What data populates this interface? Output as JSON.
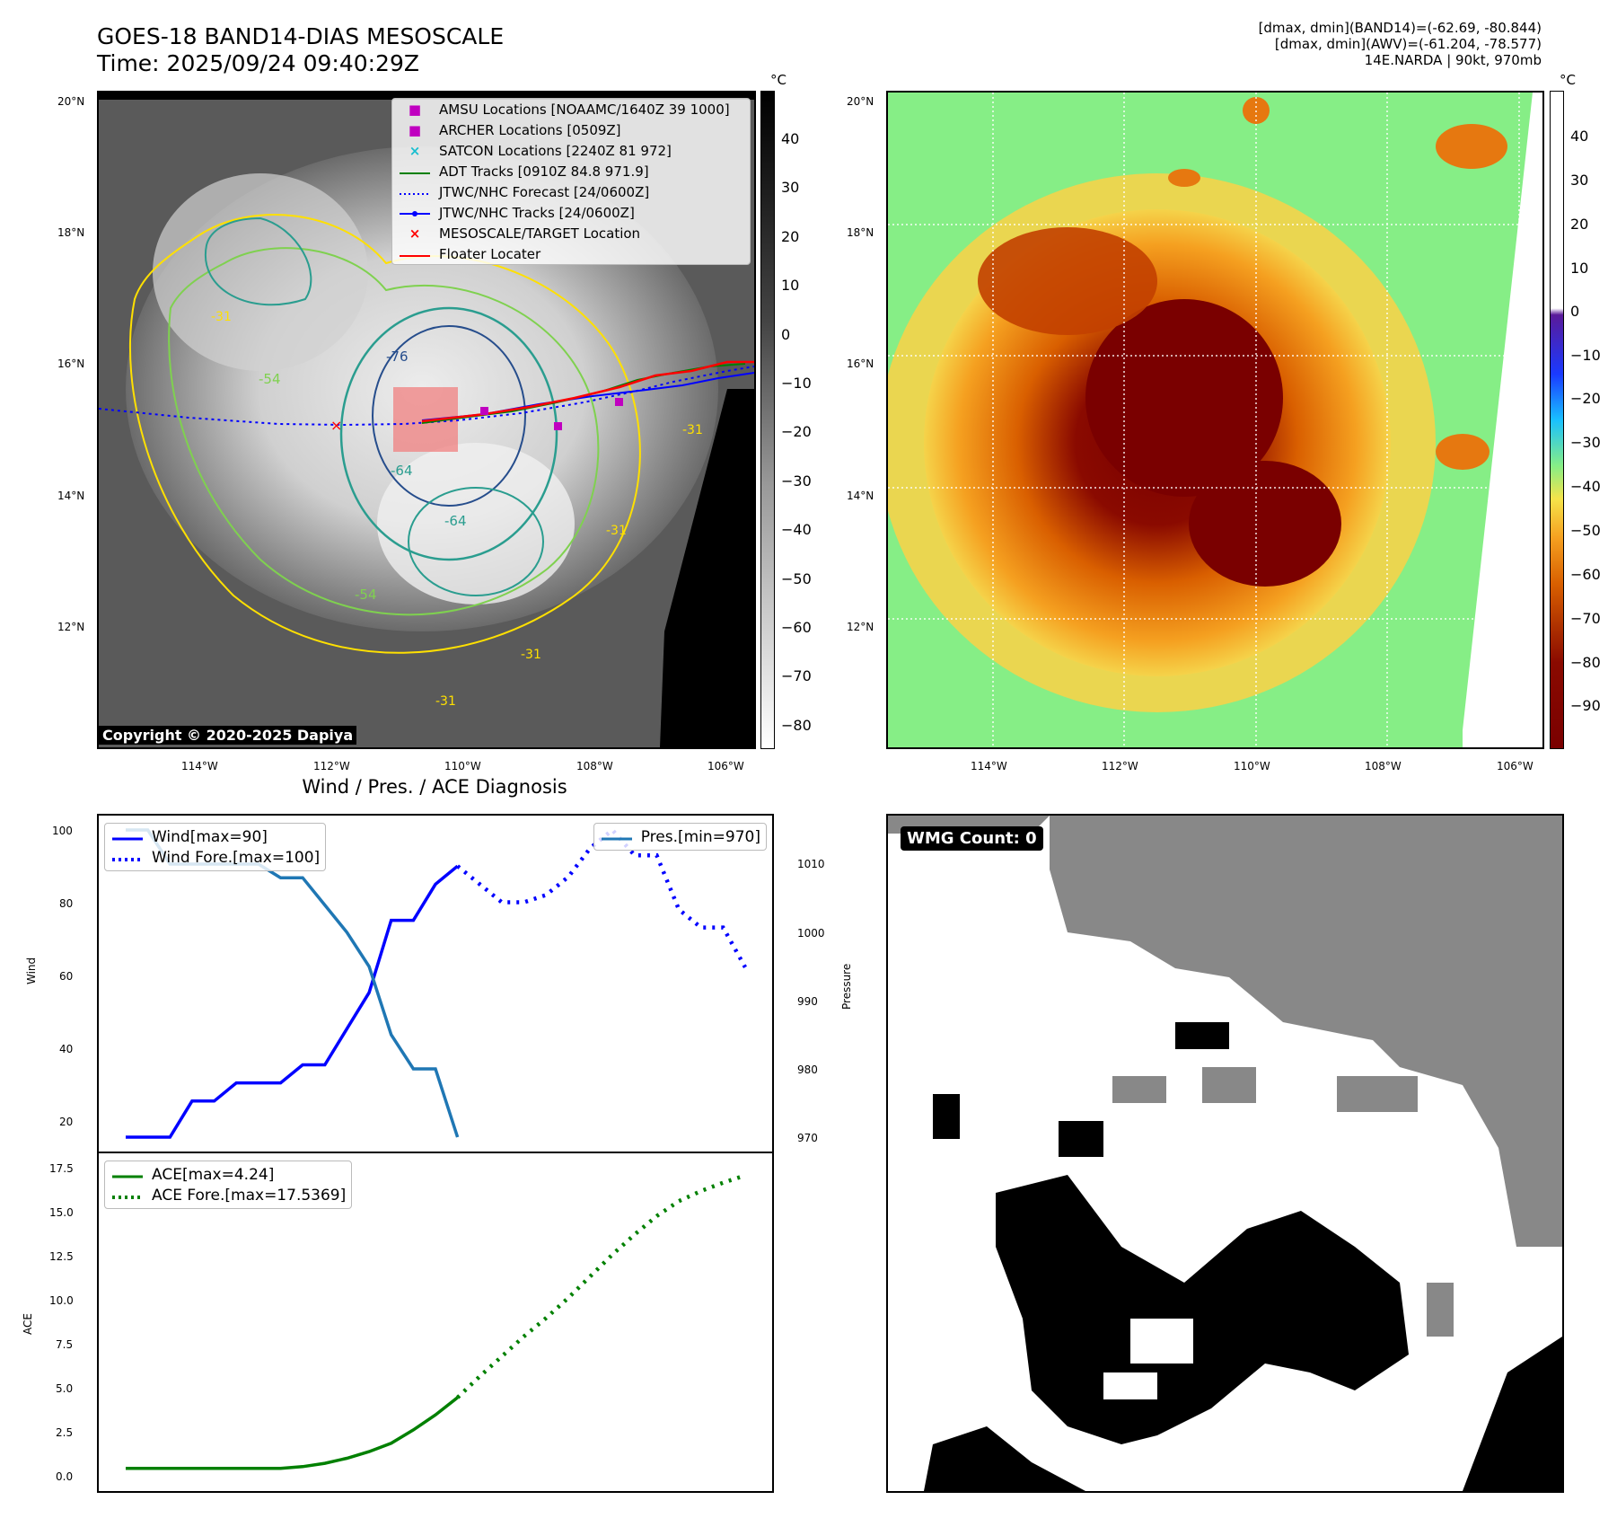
{
  "header": {
    "title_line1": "GOES-18 BAND14-DIAS MESOSCALE",
    "title_line2": "Time: 2025/09/24 09:40:29Z",
    "info_line1": "[dmax, dmin](BAND14)=(-62.69, -80.844)",
    "info_line2": "[dmax, dmin](AWV)=(-61.204, -78.577)",
    "info_line3": "14E.NARDA | 90kt, 970mb"
  },
  "map_axes": {
    "lat_labels": [
      "20°N",
      "18°N",
      "16°N",
      "14°N",
      "12°N"
    ],
    "lon_labels": [
      "114°W",
      "112°W",
      "110°W",
      "108°W",
      "106°W"
    ]
  },
  "left_map": {
    "copyright": "Copyright © 2020-2025 Dapiya",
    "contour_labels": [
      "-76",
      "-64",
      "-64",
      "-54",
      "-54",
      "-31",
      "-31",
      "-31",
      "-31",
      "-31"
    ],
    "colorbar": {
      "unit": "°C",
      "ticks": [
        "40",
        "30",
        "20",
        "10",
        "0",
        "−10",
        "−20",
        "−30",
        "−40",
        "−50",
        "−60",
        "−70",
        "−80"
      ]
    },
    "legend": [
      {
        "label": "AMSU Locations [NOAAMC/1640Z 39 1000]",
        "color": "#c000c0",
        "icon": "square-marker-icon"
      },
      {
        "label": "ARCHER Locations [0509Z]",
        "color": "#c000c0",
        "icon": "square-marker-icon"
      },
      {
        "label": "SATCON Locations [2240Z 81 972]",
        "color": "#17becf",
        "icon": "x-marker-icon"
      },
      {
        "label": "ADT Tracks [0910Z 84.8 971.9]",
        "color": "#008000",
        "icon": "line-icon"
      },
      {
        "label": "JTWC/NHC Forecast [24/0600Z]",
        "color": "#0000ff",
        "icon": "dotted-line-icon"
      },
      {
        "label": "JTWC/NHC Tracks [24/0600Z]",
        "color": "#0000ff",
        "icon": "line-dot-icon"
      },
      {
        "label": "MESOSCALE/TARGET Location",
        "color": "#ff0000",
        "icon": "x-marker-icon"
      },
      {
        "label": "Floater Locater",
        "color": "#ff0000",
        "icon": "line-icon"
      }
    ]
  },
  "right_map": {
    "colorbar": {
      "unit": "°C",
      "ticks": [
        "40",
        "30",
        "20",
        "10",
        "0",
        "−10",
        "−20",
        "−30",
        "−40",
        "−50",
        "−60",
        "−70",
        "−80",
        "−90"
      ]
    }
  },
  "wind_panel": {
    "title": "Wind / Pres. / ACE Diagnosis",
    "ylabel_left": "Wind",
    "ylabel_right": "Pressure",
    "left_ticks": [
      "100",
      "80",
      "60",
      "40",
      "20"
    ],
    "right_ticks": [
      "1010",
      "1000",
      "990",
      "980",
      "970"
    ],
    "legend_wind": "Wind[max=90]",
    "legend_wind_fore": "Wind Fore.[max=100]",
    "legend_pres": "Pres.[min=970]"
  },
  "ace_panel": {
    "ylabel": "ACE",
    "ticks": [
      "17.5",
      "15.0",
      "12.5",
      "10.0",
      "7.5",
      "5.0",
      "2.5",
      "0.0"
    ],
    "legend_ace": "ACE[max=4.24]",
    "legend_ace_fore": "ACE Fore.[max=17.5369]"
  },
  "wmg_panel": {
    "badge": "WMG Count: 0"
  },
  "chart_data": [
    {
      "type": "line",
      "series": [
        {
          "name": "Wind[max=90]",
          "x": [
            0,
            1,
            2,
            3,
            4,
            5,
            6,
            7,
            8,
            9,
            10,
            11,
            12,
            13,
            14,
            15
          ],
          "values": [
            15,
            15,
            15,
            25,
            25,
            30,
            30,
            30,
            35,
            35,
            45,
            55,
            75,
            75,
            85,
            90
          ]
        },
        {
          "name": "Wind Fore.[max=100]",
          "x": [
            15,
            16,
            17,
            18,
            19,
            20,
            21,
            22,
            23,
            24,
            25,
            26,
            27,
            28
          ],
          "values": [
            90,
            85,
            80,
            80,
            82,
            87,
            95,
            100,
            93,
            93,
            78,
            73,
            73,
            62
          ]
        },
        {
          "name": "Pres.[min=970]",
          "axis": "right",
          "x": [
            0,
            1,
            2,
            3,
            4,
            5,
            6,
            7,
            8,
            9,
            10,
            11,
            12,
            13,
            14,
            15
          ],
          "values": [
            1015,
            1015,
            1010,
            1010,
            1010,
            1010,
            1010,
            1008,
            1008,
            1004,
            1000,
            995,
            985,
            980,
            980,
            970
          ]
        }
      ],
      "ylim": [
        15,
        100
      ],
      "ylim_right": [
        970,
        1015
      ]
    },
    {
      "type": "line",
      "series": [
        {
          "name": "ACE[max=4.24]",
          "x": [
            0,
            1,
            2,
            3,
            4,
            5,
            6,
            7,
            8,
            9,
            10,
            11,
            12,
            13,
            14,
            15
          ],
          "values": [
            0,
            0,
            0,
            0,
            0,
            0,
            0,
            0,
            0.1,
            0.3,
            0.6,
            1.0,
            1.5,
            2.3,
            3.2,
            4.24
          ]
        },
        {
          "name": "ACE Fore.[max=17.5369]",
          "x": [
            15,
            16,
            17,
            18,
            19,
            20,
            21,
            22,
            23,
            24,
            25,
            26,
            27,
            28
          ],
          "values": [
            4.24,
            5.5,
            6.7,
            7.9,
            9.0,
            10.2,
            11.5,
            12.8,
            14.0,
            15.1,
            16.0,
            16.6,
            17.1,
            17.5369
          ]
        }
      ],
      "ylim": [
        -0.5,
        18
      ]
    }
  ]
}
